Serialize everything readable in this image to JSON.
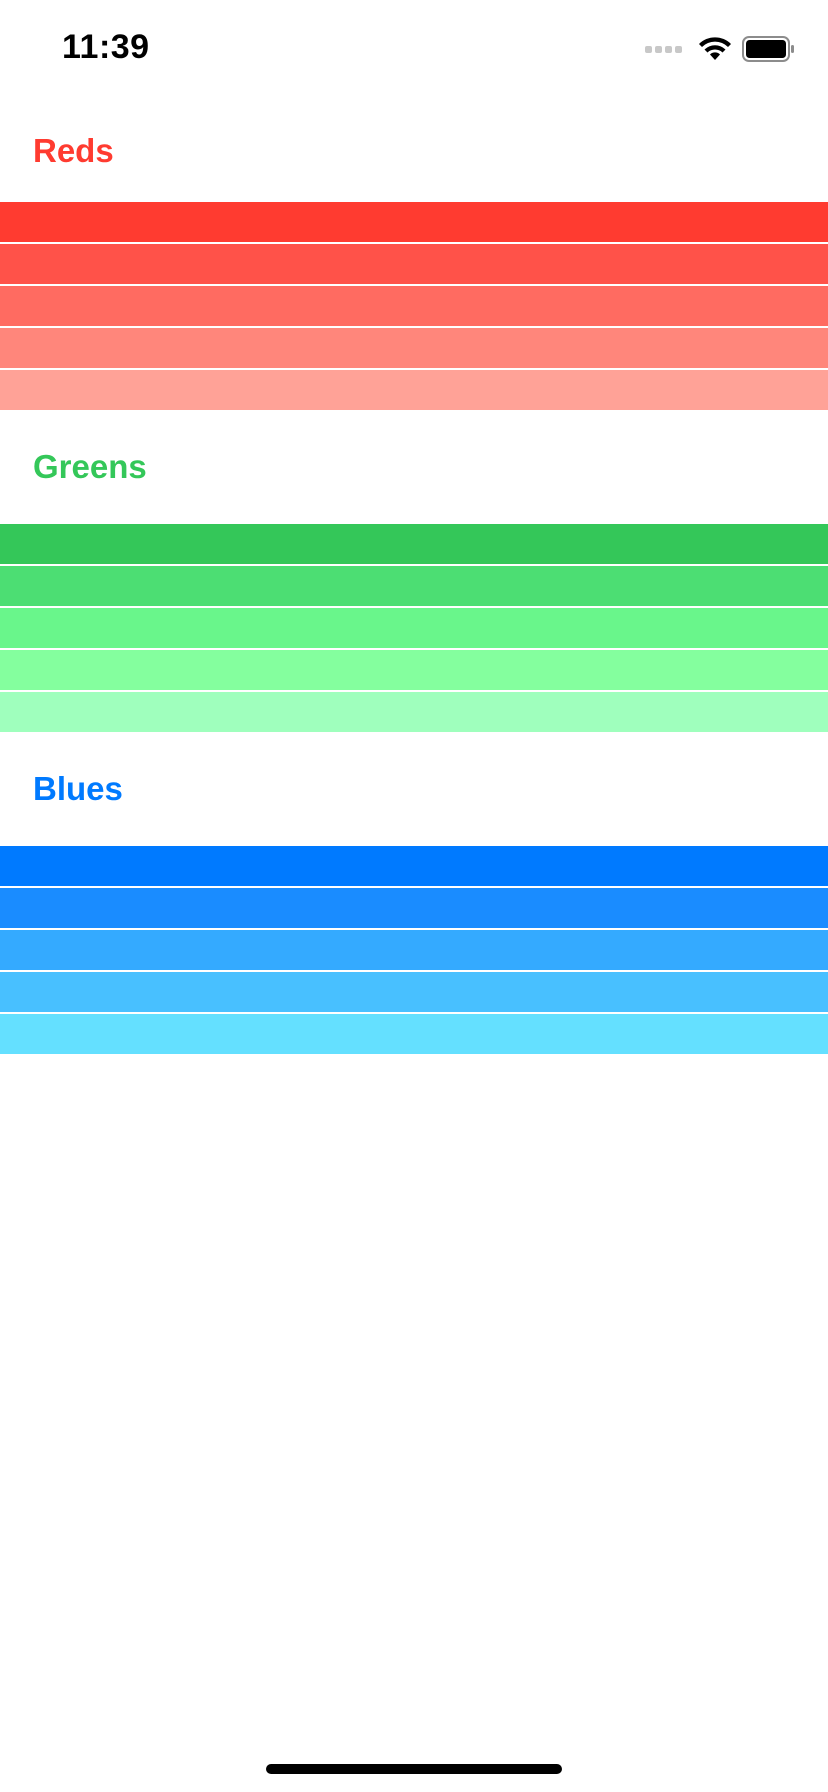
{
  "status_bar": {
    "time": "11:39",
    "icons": [
      "cellular-signal-icon",
      "wifi-icon",
      "battery-icon"
    ]
  },
  "sections": [
    {
      "title": "Reds",
      "title_color": "#ff3b30",
      "swatches": [
        "#ff3b30",
        "#ff5249",
        "#ff6b61",
        "#ff867b",
        "#ffa297"
      ]
    },
    {
      "title": "Greens",
      "title_color": "#34c759",
      "swatches": [
        "#34c759",
        "#4cde73",
        "#69f68b",
        "#84ff9e",
        "#9fffbd"
      ]
    },
    {
      "title": "Blues",
      "title_color": "#007aff",
      "swatches": [
        "#007aff",
        "#1a8cff",
        "#34aaff",
        "#48c0ff",
        "#64e0ff"
      ]
    }
  ]
}
